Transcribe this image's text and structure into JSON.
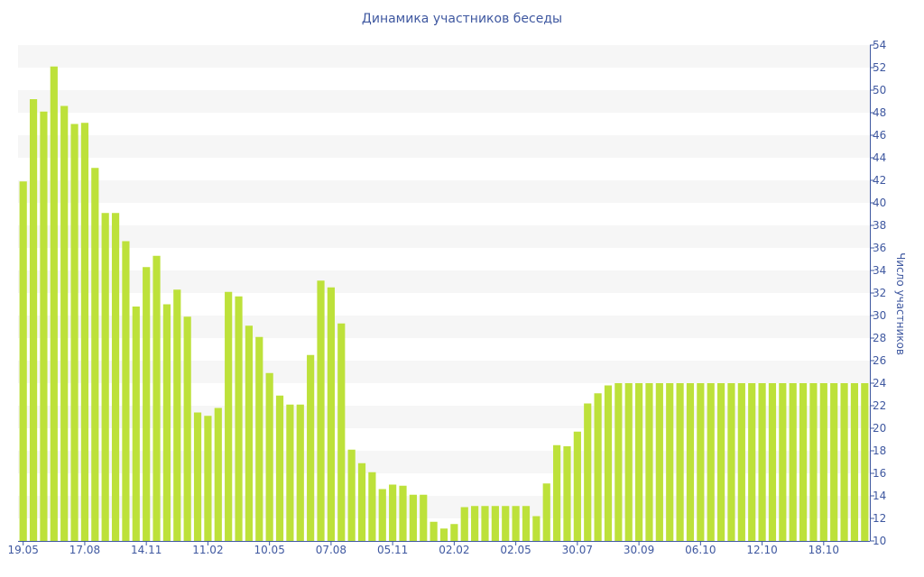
{
  "chart_data": {
    "type": "bar",
    "title": "Динамика участников беседы",
    "ylabel": "Число участников",
    "xlabel": "",
    "ylim": [
      10,
      54
    ],
    "y_ticks": [
      10,
      12,
      14,
      16,
      18,
      20,
      22,
      24,
      26,
      28,
      30,
      32,
      34,
      36,
      38,
      40,
      42,
      44,
      46,
      48,
      50,
      52,
      54
    ],
    "y_axis_side": "right",
    "grid": "alternating horizontal bands",
    "bar_color": "#bde13a",
    "band_color": "#f6f6f6",
    "text_color": "#3f58a0",
    "x_tick_labels": [
      {
        "label": "19.05",
        "index": 0
      },
      {
        "label": "17.08",
        "index": 6
      },
      {
        "label": "14.11",
        "index": 12
      },
      {
        "label": "11.02",
        "index": 18
      },
      {
        "label": "10.05",
        "index": 24
      },
      {
        "label": "07.08",
        "index": 30
      },
      {
        "label": "05.11",
        "index": 36
      },
      {
        "label": "02.02",
        "index": 42
      },
      {
        "label": "02.05",
        "index": 48
      },
      {
        "label": "30.07",
        "index": 54
      },
      {
        "label": "30.09",
        "index": 60
      },
      {
        "label": "06.10",
        "index": 66
      },
      {
        "label": "12.10",
        "index": 72
      },
      {
        "label": "18.10",
        "index": 78
      }
    ],
    "values": [
      41.9,
      49.2,
      48.1,
      52.1,
      48.6,
      47.0,
      47.1,
      43.1,
      39.1,
      39.1,
      36.6,
      30.8,
      34.3,
      35.3,
      31.0,
      32.3,
      29.9,
      21.4,
      21.1,
      21.8,
      32.1,
      31.7,
      29.1,
      28.1,
      24.9,
      22.9,
      22.1,
      22.1,
      26.5,
      33.1,
      32.5,
      29.3,
      18.1,
      16.9,
      16.1,
      14.6,
      15.0,
      14.9,
      14.1,
      14.1,
      11.7,
      11.1,
      11.5,
      13.0,
      13.1,
      13.1,
      13.1,
      13.1,
      13.1,
      13.1,
      12.2,
      15.1,
      18.5,
      18.4,
      19.7,
      22.2,
      23.1,
      23.8,
      24.0,
      24.0,
      24.0,
      24.0,
      24.0,
      24.0,
      24.0,
      24.0,
      24.0,
      24.0,
      24.0,
      24.0,
      24.0,
      24.0,
      24.0,
      24.0,
      24.0,
      24.0,
      24.0,
      24.0,
      24.0,
      24.0,
      24.0,
      24.0,
      24.0
    ]
  }
}
